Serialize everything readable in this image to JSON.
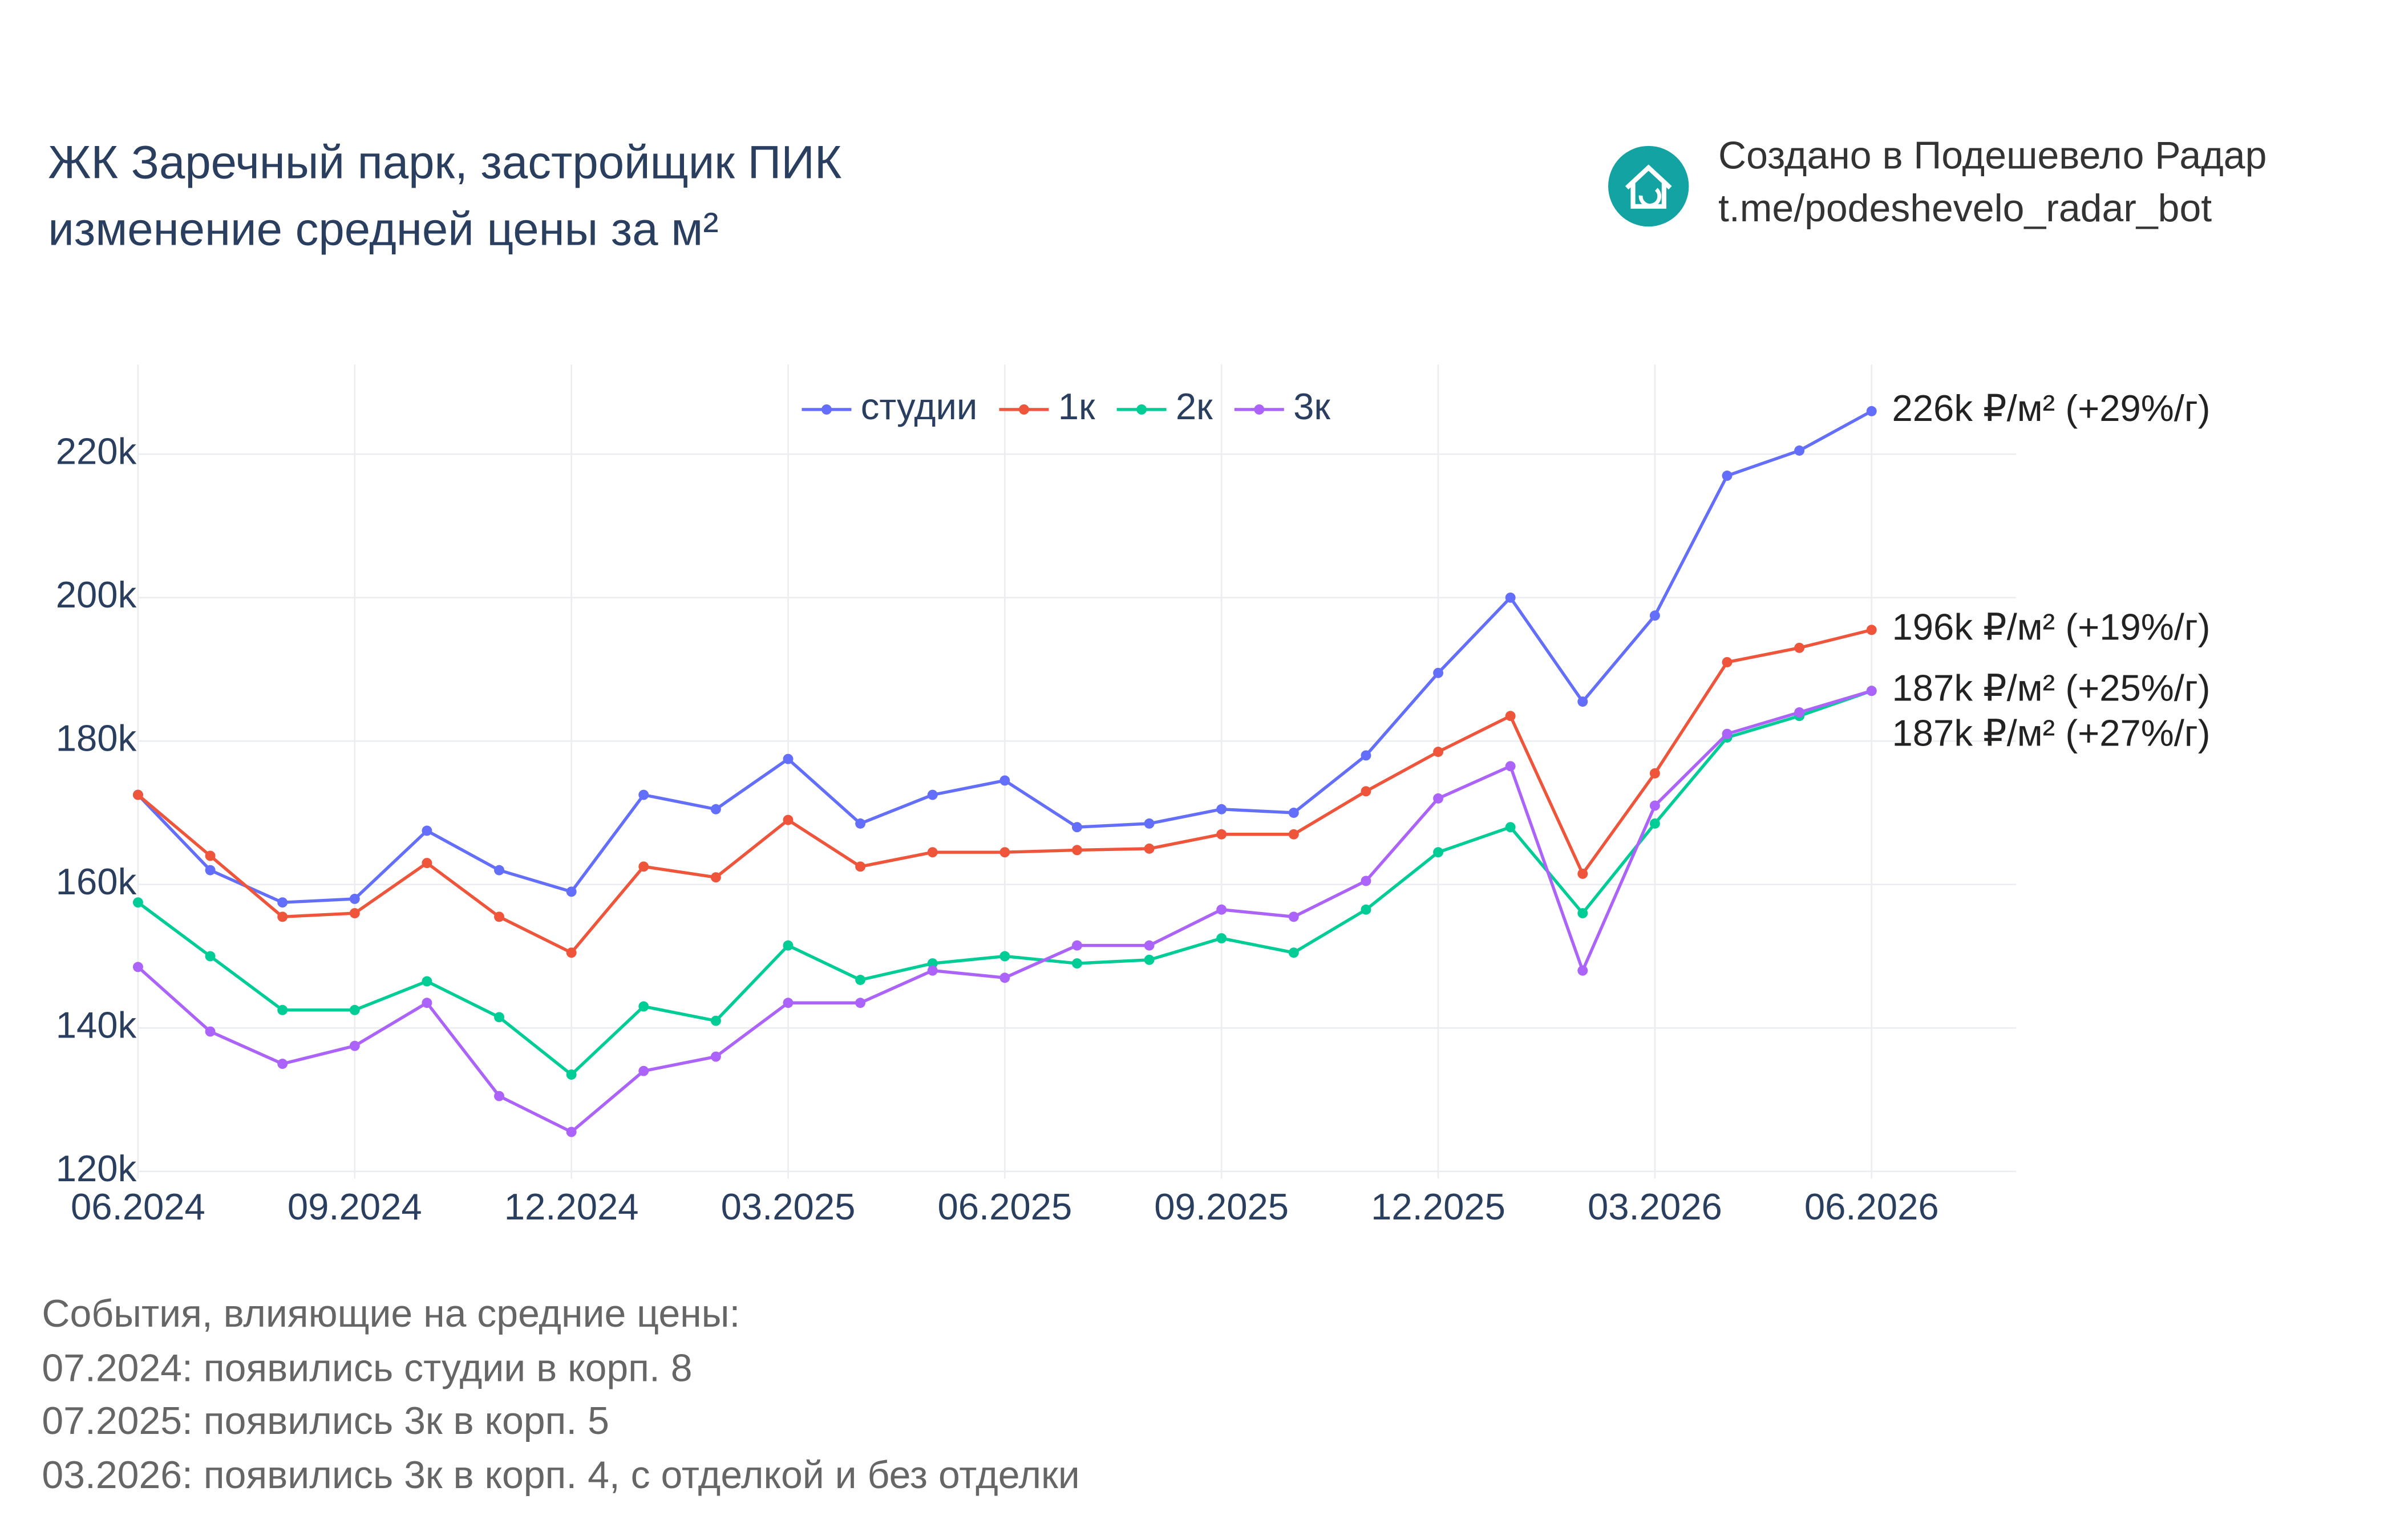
{
  "chart_data": {
    "type": "line",
    "title": "ЖК Заречный парк, застройщик ПИК",
    "subtitle": "изменение средней цены за м²",
    "x": [
      "06.2024",
      "07.2024",
      "08.2024",
      "09.2024",
      "10.2024",
      "11.2024",
      "12.2024",
      "01.2025",
      "02.2025",
      "03.2025",
      "04.2025",
      "05.2025",
      "06.2025",
      "07.2025",
      "08.2025",
      "09.2025",
      "10.2025",
      "11.2025",
      "12.2025",
      "01.2026",
      "02.2026",
      "03.2026",
      "04.2026",
      "05.2026",
      "06.2026"
    ],
    "xlim": [
      "06.2024",
      "08.2026"
    ],
    "xticks": [
      "06.2024",
      "09.2024",
      "12.2024",
      "03.2025",
      "06.2025",
      "09.2025",
      "12.2025",
      "03.2026",
      "06.2026"
    ],
    "ylim": [
      119,
      232.5
    ],
    "yticks": [
      {
        "value": 120,
        "label": "120k"
      },
      {
        "value": 140,
        "label": "140k"
      },
      {
        "value": 160,
        "label": "160k"
      },
      {
        "value": 180,
        "label": "180k"
      },
      {
        "value": 200,
        "label": "200k"
      },
      {
        "value": 220,
        "label": "220k"
      }
    ],
    "grid": true,
    "legend": "top",
    "series": [
      {
        "name": "студии",
        "color": "#636efa",
        "end_label": "226k ₽/м² (+29%/г)",
        "values": [
          172.5,
          162,
          157.5,
          158,
          167.5,
          162,
          159,
          172.5,
          170.5,
          177.5,
          168.5,
          172.5,
          174.5,
          168,
          168.5,
          170.5,
          170,
          178,
          189.5,
          200,
          185.5,
          197.5,
          217,
          220.5,
          226
        ]
      },
      {
        "name": "1к",
        "color": "#EF553B",
        "end_label": "196k ₽/м² (+19%/г)",
        "values": [
          172.5,
          164,
          155.5,
          156,
          163,
          155.5,
          150.5,
          162.5,
          161,
          169,
          162.5,
          164.5,
          164.5,
          164.8,
          165,
          167,
          167,
          173,
          178.5,
          183.5,
          161.5,
          175.5,
          191,
          193,
          195.5
        ]
      },
      {
        "name": "2к",
        "color": "#00cc96",
        "end_label": "187k ₽/м² (+25%/г)",
        "values": [
          157.5,
          150,
          142.5,
          142.5,
          146.5,
          141.5,
          133.5,
          143,
          141,
          151.5,
          146.7,
          149,
          150,
          149,
          149.5,
          152.5,
          150.5,
          156.5,
          164.5,
          168,
          156,
          168.5,
          180.5,
          183.5,
          187
        ]
      },
      {
        "name": "3к",
        "color": "#ab63fa",
        "end_label": "187k ₽/м² (+27%/г)",
        "values": [
          148.5,
          139.5,
          135,
          137.5,
          143.5,
          130.5,
          125.5,
          134,
          136,
          143.5,
          143.5,
          148,
          147,
          151.5,
          151.5,
          156.5,
          155.5,
          160.5,
          172,
          176.5,
          148,
          171,
          181,
          184,
          187
        ]
      }
    ]
  },
  "credit": [
    "Создано в Подешевело Радар",
    "t.me/podeshevelo_radar_bot"
  ],
  "events": {
    "title": "События, влияющие на средние цены:",
    "items": [
      "07.2024: появились студии в корп. 8",
      "07.2025: появились 3к в корп. 5",
      "03.2026: появились 3к в корп. 4, с отделкой и без отделки"
    ]
  }
}
